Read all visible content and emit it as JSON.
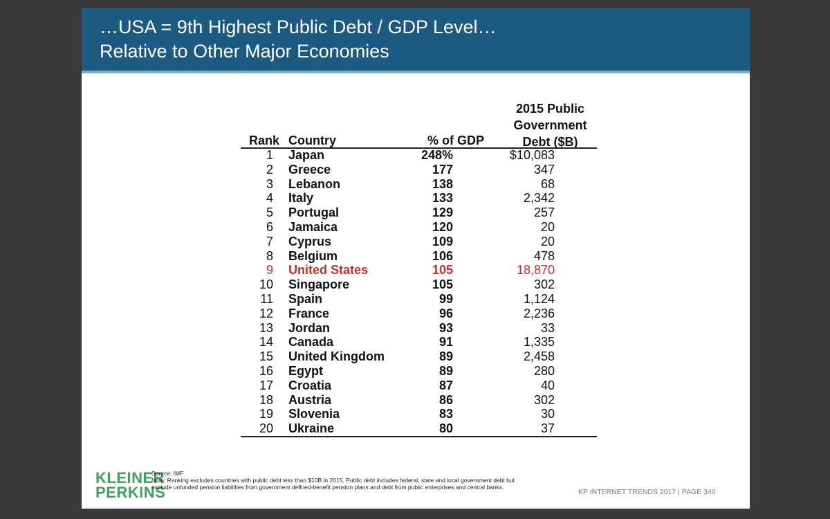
{
  "title": {
    "line1": "…USA = 9th Highest Public Debt / GDP Level…",
    "line2": "Relative to Other Major Economies"
  },
  "table": {
    "headers": {
      "rank": "Rank",
      "country": "Country",
      "gdp": "% of GDP",
      "debt_line1": "2015 Public",
      "debt_line2": "Government",
      "debt_line3": "Debt ($B)"
    },
    "rows": [
      {
        "rank": "1",
        "country": "Japan",
        "gdp": "248%",
        "debt": "$10,083"
      },
      {
        "rank": "2",
        "country": "Greece",
        "gdp": "177",
        "debt": "347"
      },
      {
        "rank": "3",
        "country": "Lebanon",
        "gdp": "138",
        "debt": "68"
      },
      {
        "rank": "4",
        "country": "Italy",
        "gdp": "133",
        "debt": "2,342"
      },
      {
        "rank": "5",
        "country": "Portugal",
        "gdp": "129",
        "debt": "257"
      },
      {
        "rank": "6",
        "country": "Jamaica",
        "gdp": "120",
        "debt": "20"
      },
      {
        "rank": "7",
        "country": "Cyprus",
        "gdp": "109",
        "debt": "20"
      },
      {
        "rank": "8",
        "country": "Belgium",
        "gdp": "106",
        "debt": "478"
      },
      {
        "rank": "9",
        "country": "United States",
        "gdp": "105",
        "debt": "18,870",
        "highlight": true
      },
      {
        "rank": "10",
        "country": "Singapore",
        "gdp": "105",
        "debt": "302"
      },
      {
        "rank": "11",
        "country": "Spain",
        "gdp": "99",
        "debt": "1,124"
      },
      {
        "rank": "12",
        "country": "France",
        "gdp": "96",
        "debt": "2,236"
      },
      {
        "rank": "13",
        "country": "Jordan",
        "gdp": "93",
        "debt": "33"
      },
      {
        "rank": "14",
        "country": "Canada",
        "gdp": "91",
        "debt": "1,335"
      },
      {
        "rank": "15",
        "country": "United Kingdom",
        "gdp": "89",
        "debt": "2,458"
      },
      {
        "rank": "16",
        "country": "Egypt",
        "gdp": "89",
        "debt": "280"
      },
      {
        "rank": "17",
        "country": "Croatia",
        "gdp": "87",
        "debt": "40"
      },
      {
        "rank": "18",
        "country": "Austria",
        "gdp": "86",
        "debt": "302"
      },
      {
        "rank": "19",
        "country": "Slovenia",
        "gdp": "83",
        "debt": "30"
      },
      {
        "rank": "20",
        "country": "Ukraine",
        "gdp": "80",
        "debt": "37"
      }
    ]
  },
  "logo": {
    "line1": "KLEINER",
    "line2": "PERKINS"
  },
  "notes": {
    "source": "Source: IMF",
    "note1": "Note: Ranking excludes countries with public debt less than $10B in 2015. Public debt includes federal, state and local government debt but",
    "note2": "exclude unfunded pension liabilities from government defined-benefit pension plans and debt from public enterprises and central banks."
  },
  "footer": "KP INTERNET TRENDS 2017   |   PAGE 340",
  "colors": {
    "title_bar": "#1d5a82",
    "title_rule": "#6fb3d9",
    "highlight": "#c0312b",
    "logo": "#3ea35a"
  }
}
